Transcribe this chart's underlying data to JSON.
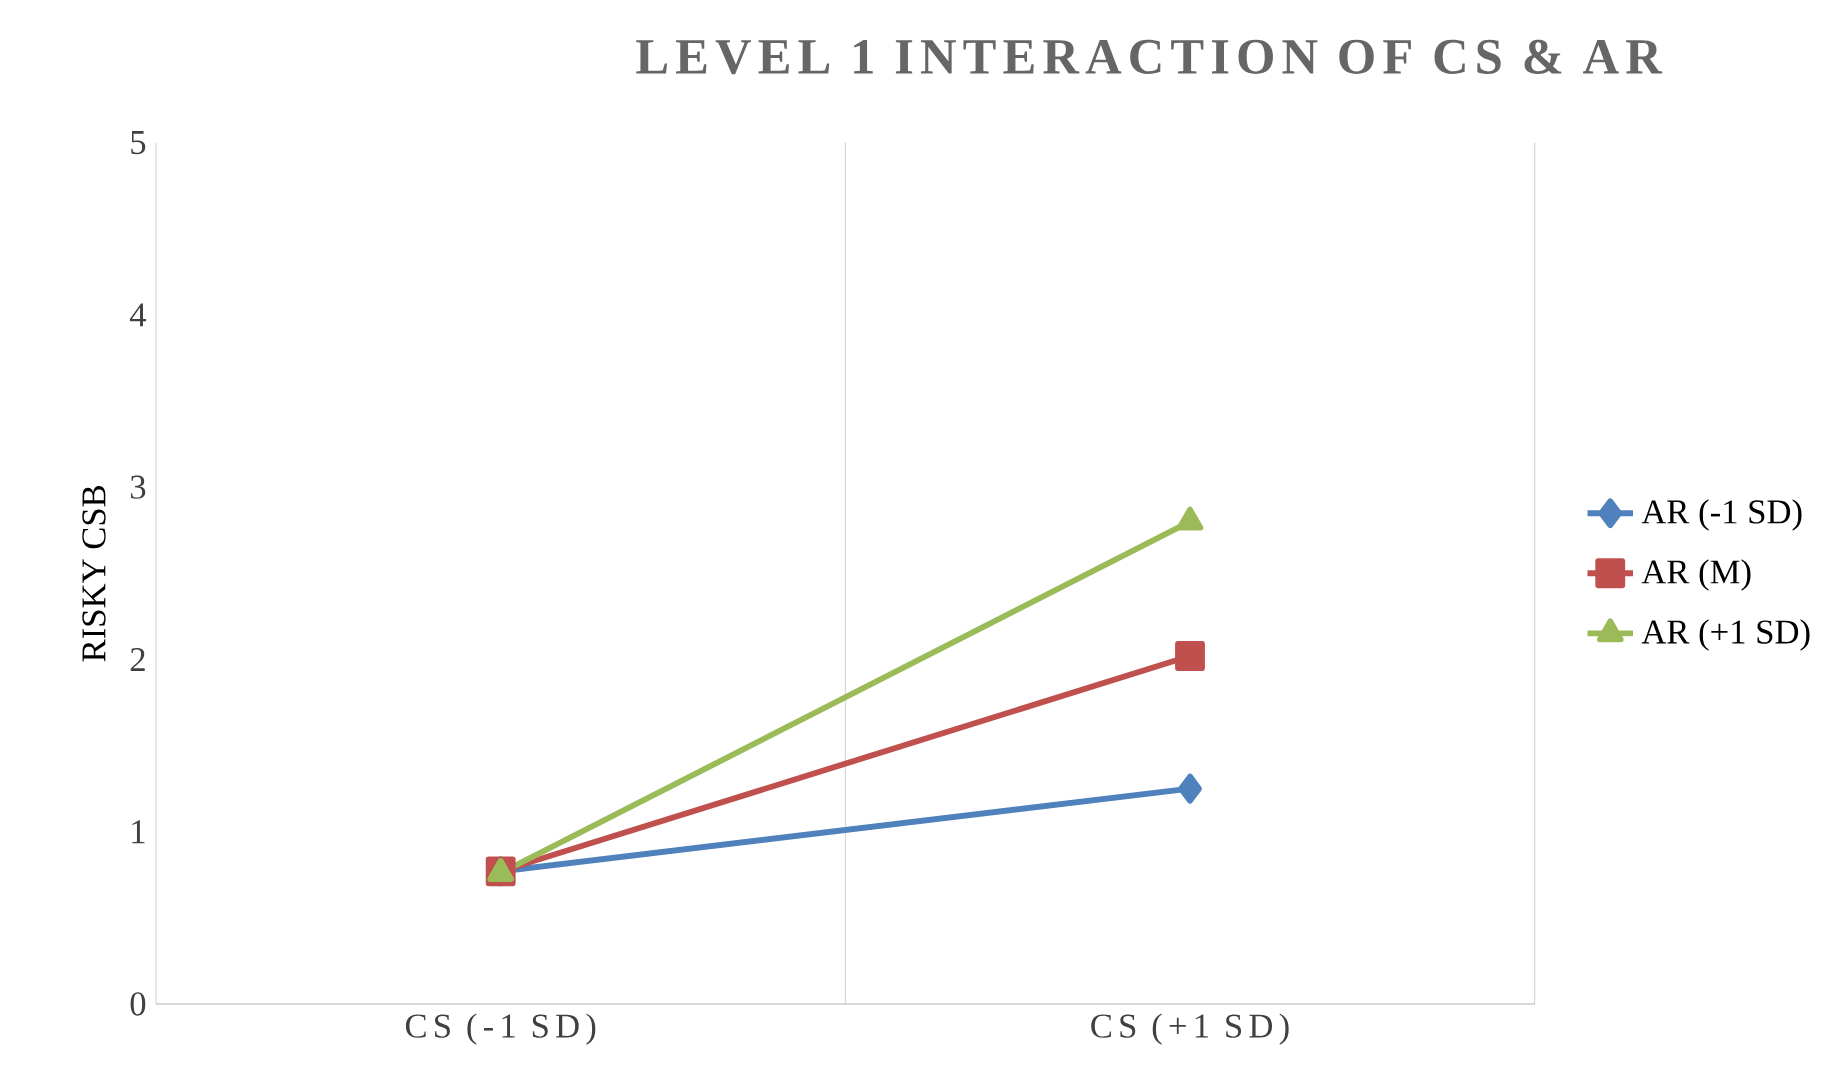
{
  "chart_data": {
    "type": "line",
    "title": "LEVEL 1 INTERACTION OF CS & AR",
    "ylabel": "RISKY CSB",
    "categories": [
      "CS (-1 SD)",
      "CS (+1 SD)"
    ],
    "series": [
      {
        "name": "AR (-1 SD)",
        "color": "#4f81bd",
        "marker": "diamond",
        "values": [
          0.77,
          1.25
        ]
      },
      {
        "name": "AR (M)",
        "color": "#c0504d",
        "marker": "square",
        "values": [
          0.77,
          2.02
        ]
      },
      {
        "name": "AR (+1 SD)",
        "color": "#9bbb59",
        "marker": "triangle",
        "values": [
          0.76,
          2.8
        ]
      }
    ],
    "ylim": [
      0,
      5
    ],
    "yticks": [
      0,
      1,
      2,
      3,
      4,
      5
    ],
    "grid": "x",
    "legend": "right",
    "line_style": "solid"
  }
}
